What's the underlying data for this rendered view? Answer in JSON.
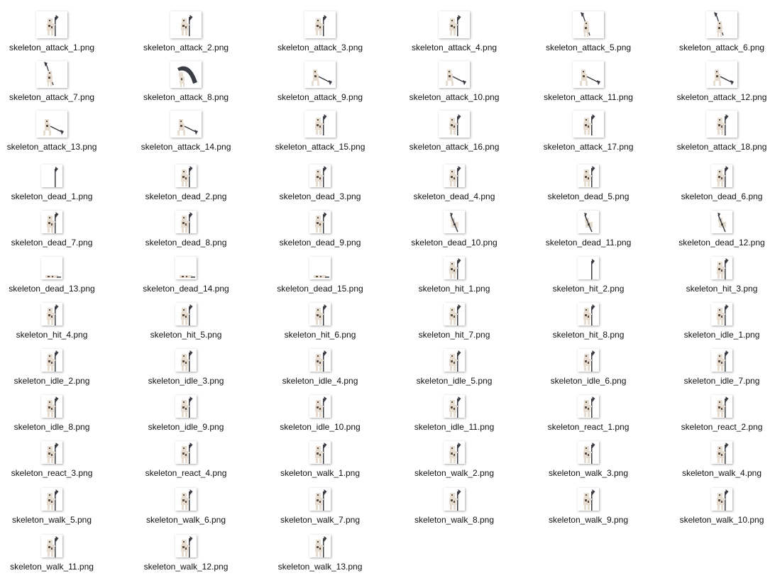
{
  "window": {
    "view": "large-icons",
    "bone_color": "#e6ddd0",
    "shadow_color": "#5a4e44",
    "axe_color": "#3a3d44"
  },
  "files": [
    {
      "name": "skeleton_attack_1.png",
      "pose": "stand"
    },
    {
      "name": "skeleton_attack_2.png",
      "pose": "stand"
    },
    {
      "name": "skeleton_attack_3.png",
      "pose": "stand"
    },
    {
      "name": "skeleton_attack_4.png",
      "pose": "stand"
    },
    {
      "name": "skeleton_attack_5.png",
      "pose": "raise"
    },
    {
      "name": "skeleton_attack_6.png",
      "pose": "raise"
    },
    {
      "name": "skeleton_attack_7.png",
      "pose": "raise"
    },
    {
      "name": "skeleton_attack_8.png",
      "pose": "swing"
    },
    {
      "name": "skeleton_attack_9.png",
      "pose": "low"
    },
    {
      "name": "skeleton_attack_10.png",
      "pose": "low"
    },
    {
      "name": "skeleton_attack_11.png",
      "pose": "low"
    },
    {
      "name": "skeleton_attack_12.png",
      "pose": "low"
    },
    {
      "name": "skeleton_attack_13.png",
      "pose": "low"
    },
    {
      "name": "skeleton_attack_14.png",
      "pose": "low"
    },
    {
      "name": "skeleton_attack_15.png",
      "pose": "stand"
    },
    {
      "name": "skeleton_attack_16.png",
      "pose": "stand"
    },
    {
      "name": "skeleton_attack_17.png",
      "pose": "stand"
    },
    {
      "name": "skeleton_attack_18.png",
      "pose": "stand"
    },
    {
      "name": "skeleton_dead_1.png",
      "pose": "axe-only"
    },
    {
      "name": "skeleton_dead_2.png",
      "pose": "stand"
    },
    {
      "name": "skeleton_dead_3.png",
      "pose": "stand"
    },
    {
      "name": "skeleton_dead_4.png",
      "pose": "stand"
    },
    {
      "name": "skeleton_dead_5.png",
      "pose": "stand"
    },
    {
      "name": "skeleton_dead_6.png",
      "pose": "stand"
    },
    {
      "name": "skeleton_dead_7.png",
      "pose": "stand"
    },
    {
      "name": "skeleton_dead_8.png",
      "pose": "stand"
    },
    {
      "name": "skeleton_dead_9.png",
      "pose": "stand"
    },
    {
      "name": "skeleton_dead_10.png",
      "pose": "fall"
    },
    {
      "name": "skeleton_dead_11.png",
      "pose": "fall"
    },
    {
      "name": "skeleton_dead_12.png",
      "pose": "fall"
    },
    {
      "name": "skeleton_dead_13.png",
      "pose": "lying"
    },
    {
      "name": "skeleton_dead_14.png",
      "pose": "lying"
    },
    {
      "name": "skeleton_dead_15.png",
      "pose": "lying"
    },
    {
      "name": "skeleton_hit_1.png",
      "pose": "stand"
    },
    {
      "name": "skeleton_hit_2.png",
      "pose": "axe-only"
    },
    {
      "name": "skeleton_hit_3.png",
      "pose": "stand"
    },
    {
      "name": "skeleton_hit_4.png",
      "pose": "stand"
    },
    {
      "name": "skeleton_hit_5.png",
      "pose": "stand"
    },
    {
      "name": "skeleton_hit_6.png",
      "pose": "stand"
    },
    {
      "name": "skeleton_hit_7.png",
      "pose": "stand"
    },
    {
      "name": "skeleton_hit_8.png",
      "pose": "stand"
    },
    {
      "name": "skeleton_idle_1.png",
      "pose": "stand"
    },
    {
      "name": "skeleton_idle_2.png",
      "pose": "stand"
    },
    {
      "name": "skeleton_idle_3.png",
      "pose": "stand"
    },
    {
      "name": "skeleton_idle_4.png",
      "pose": "stand"
    },
    {
      "name": "skeleton_idle_5.png",
      "pose": "stand"
    },
    {
      "name": "skeleton_idle_6.png",
      "pose": "stand"
    },
    {
      "name": "skeleton_idle_7.png",
      "pose": "stand"
    },
    {
      "name": "skeleton_idle_8.png",
      "pose": "stand"
    },
    {
      "name": "skeleton_idle_9.png",
      "pose": "stand"
    },
    {
      "name": "skeleton_idle_10.png",
      "pose": "stand"
    },
    {
      "name": "skeleton_idle_11.png",
      "pose": "stand"
    },
    {
      "name": "skeleton_react_1.png",
      "pose": "stand"
    },
    {
      "name": "skeleton_react_2.png",
      "pose": "stand"
    },
    {
      "name": "skeleton_react_3.png",
      "pose": "stand"
    },
    {
      "name": "skeleton_react_4.png",
      "pose": "stand"
    },
    {
      "name": "skeleton_walk_1.png",
      "pose": "stand"
    },
    {
      "name": "skeleton_walk_2.png",
      "pose": "stand"
    },
    {
      "name": "skeleton_walk_3.png",
      "pose": "stand"
    },
    {
      "name": "skeleton_walk_4.png",
      "pose": "stand"
    },
    {
      "name": "skeleton_walk_5.png",
      "pose": "stand"
    },
    {
      "name": "skeleton_walk_6.png",
      "pose": "stand"
    },
    {
      "name": "skeleton_walk_7.png",
      "pose": "stand"
    },
    {
      "name": "skeleton_walk_8.png",
      "pose": "stand"
    },
    {
      "name": "skeleton_walk_9.png",
      "pose": "stand"
    },
    {
      "name": "skeleton_walk_10.png",
      "pose": "stand"
    },
    {
      "name": "skeleton_walk_11.png",
      "pose": "stand"
    },
    {
      "name": "skeleton_walk_12.png",
      "pose": "stand"
    },
    {
      "name": "skeleton_walk_13.png",
      "pose": "stand"
    }
  ]
}
